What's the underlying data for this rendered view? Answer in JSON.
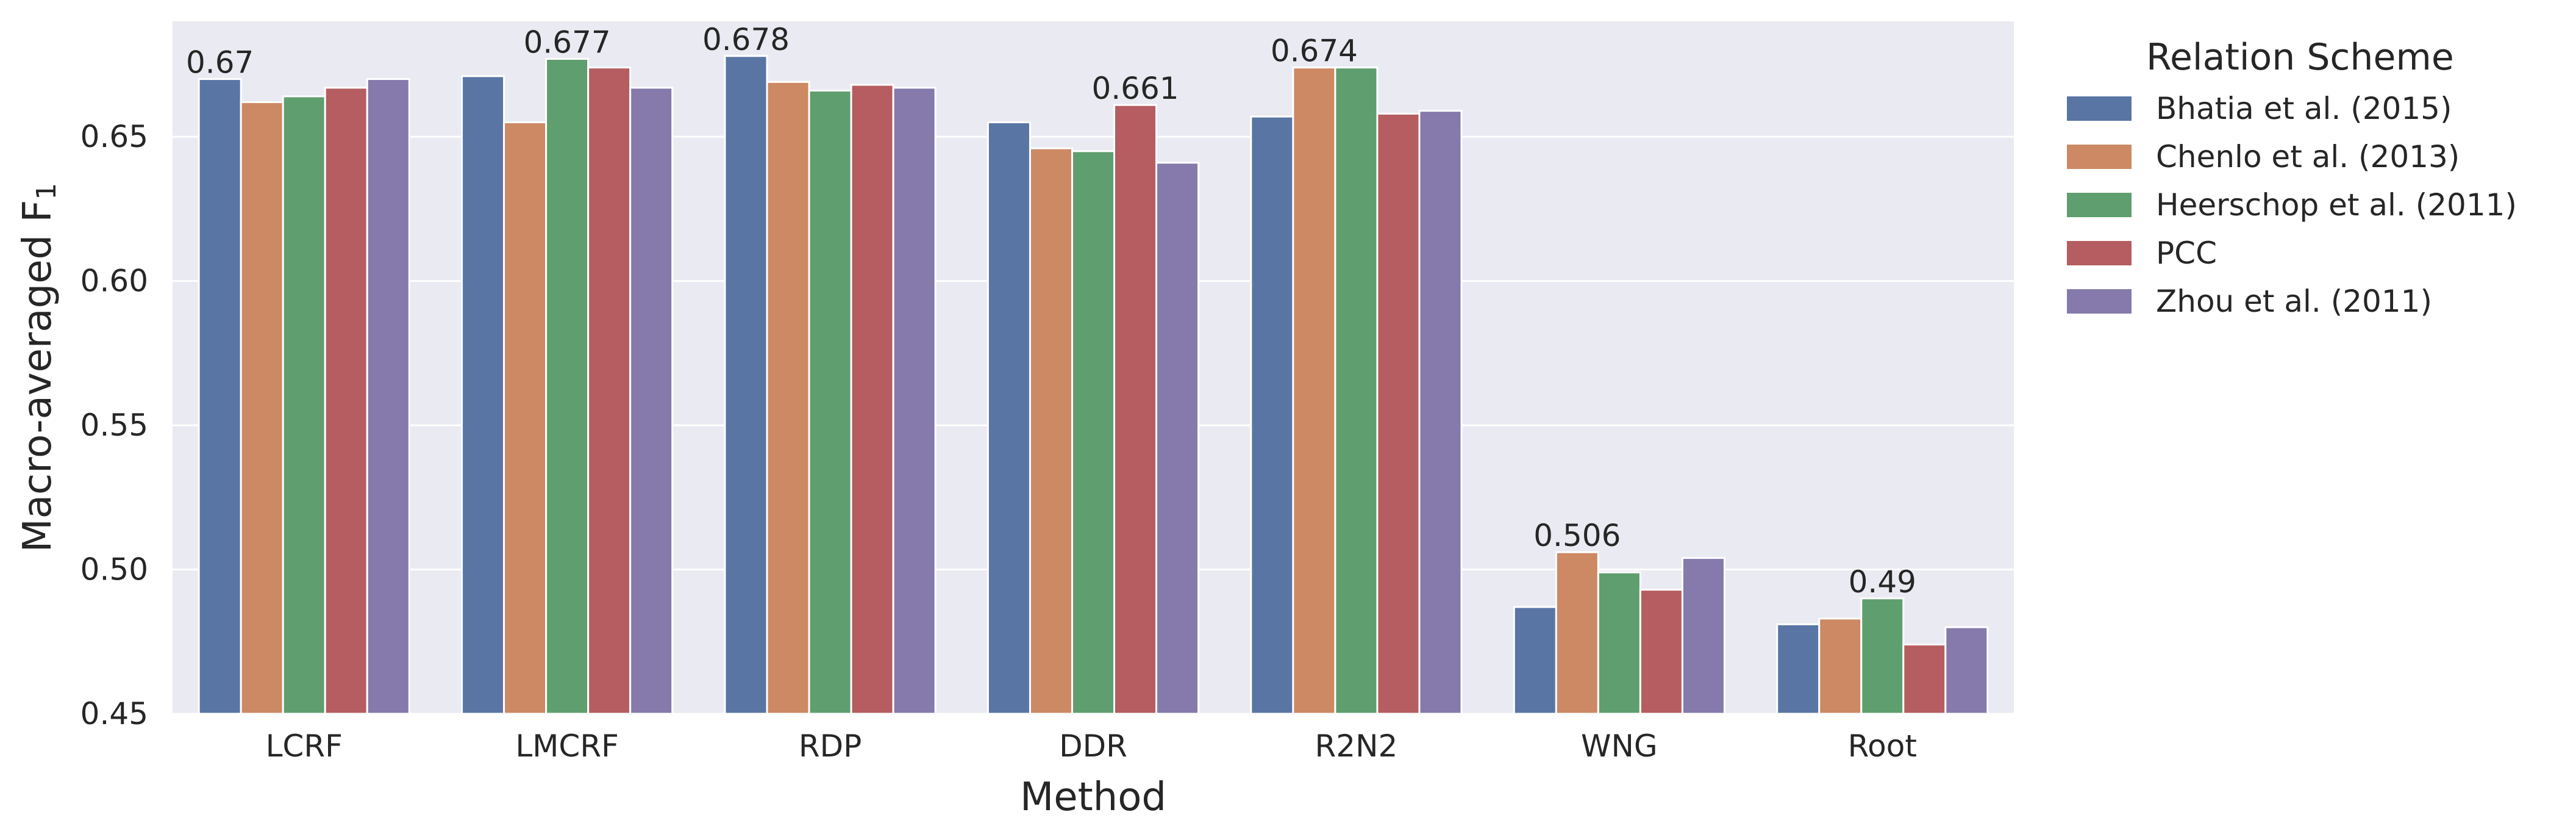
{
  "chart_data": {
    "type": "bar",
    "xlabel": "Method",
    "ylabel": "Macro-averaged F",
    "ylabel_subscript": "1",
    "ylim": [
      0.45,
      0.69
    ],
    "yticks": [
      "0.45",
      "0.50",
      "0.55",
      "0.60",
      "0.65"
    ],
    "grid": true,
    "legend": {
      "title": "Relation Scheme",
      "placement": "outside right"
    },
    "categories": [
      "LCRF",
      "LMCRF",
      "RDP",
      "DDR",
      "R2N2",
      "WNG",
      "Root"
    ],
    "series": [
      {
        "name": "Bhatia et al. (2015)",
        "color": "#5975a4",
        "values": [
          0.67,
          0.671,
          0.678,
          0.655,
          0.657,
          0.487,
          0.481
        ]
      },
      {
        "name": "Chenlo et al. (2013)",
        "color": "#cc8963",
        "values": [
          0.662,
          0.655,
          0.669,
          0.646,
          0.674,
          0.506,
          0.483
        ]
      },
      {
        "name": "Heerschop et al. (2011)",
        "color": "#5f9e6e",
        "values": [
          0.664,
          0.677,
          0.666,
          0.645,
          0.674,
          0.499,
          0.49
        ]
      },
      {
        "name": "PCC",
        "color": "#b55d60",
        "values": [
          0.667,
          0.674,
          0.668,
          0.661,
          0.658,
          0.493,
          0.474
        ]
      },
      {
        "name": "Zhou et al. (2011)",
        "color": "#857aab",
        "values": [
          0.67,
          0.667,
          0.667,
          0.641,
          0.659,
          0.504,
          0.48
        ]
      }
    ],
    "annotations": [
      {
        "category": "LCRF",
        "series": 0,
        "text": "0.67"
      },
      {
        "category": "LMCRF",
        "series": 2,
        "text": "0.677"
      },
      {
        "category": "RDP",
        "series": 0,
        "text": "0.678"
      },
      {
        "category": "DDR",
        "series": 3,
        "text": "0.661"
      },
      {
        "category": "R2N2",
        "series": 1,
        "text": "0.674"
      },
      {
        "category": "WNG",
        "series": 1,
        "text": "0.506"
      },
      {
        "category": "Root",
        "series": 2,
        "text": "0.49"
      }
    ],
    "colors": {
      "plot_background": "#eaeaf2",
      "grid": "#ffffff",
      "text": "#262626"
    }
  }
}
